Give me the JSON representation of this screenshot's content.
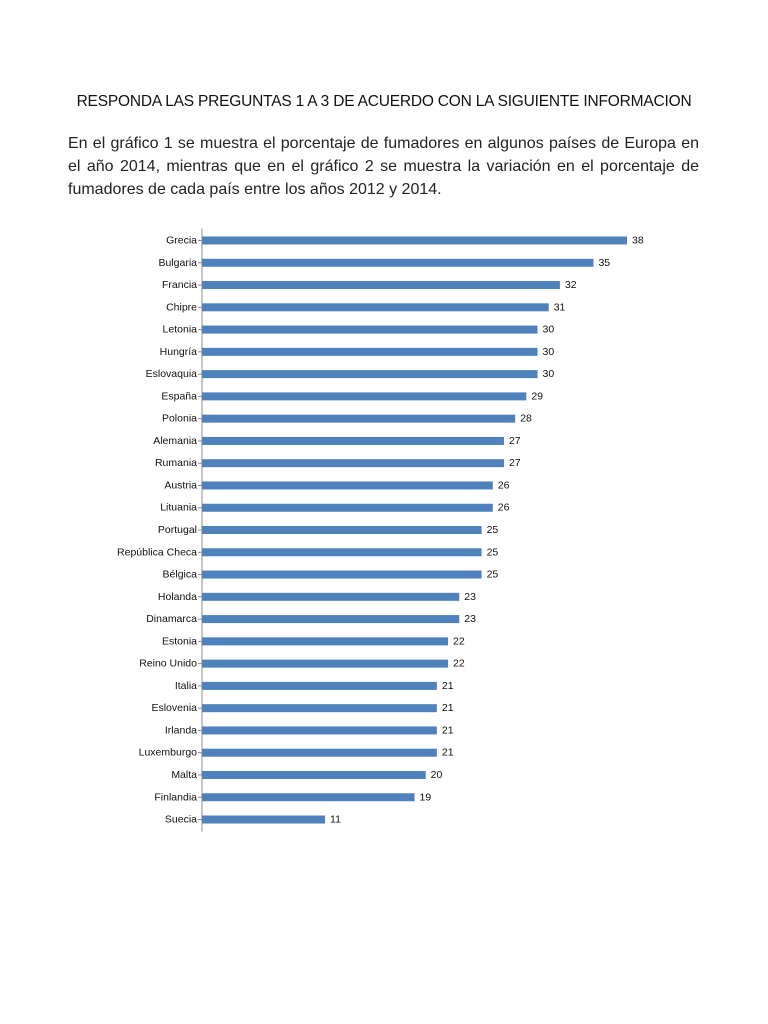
{
  "heading": "RESPONDA LAS PREGUNTAS 1 A 3 DE ACUERDO CON LA SIGUIENTE INFORMACION",
  "intro": "En el gráfico 1 se muestra el porcentaje de fumadores en algunos países de Europa en el año 2014, mientras que en el gráfico 2 se muestra la variación en el porcentaje de fumadores de cada país entre los años 2012 y 2014.",
  "colors": {
    "bar": "#4f81bd",
    "axis": "#8c8c8c"
  },
  "chart_data": {
    "type": "bar",
    "orientation": "horizontal",
    "title": "",
    "xlabel": "",
    "ylabel": "",
    "xlim": [
      0,
      40
    ],
    "grid": false,
    "categories": [
      "Grecia",
      "Bulgaria",
      "Francia",
      "Chipre",
      "Letonia",
      "Hungría",
      "Eslovaquia",
      "España",
      "Polonia",
      "Alemania",
      "Rumania",
      "Austria",
      "Lituania",
      "Portugal",
      "República Checa",
      "Bélgica",
      "Holanda",
      "Dinamarca",
      "Estonia",
      "Reino Unido",
      "Italia",
      "Eslovenia",
      "Irlanda",
      "Luxemburgo",
      "Malta",
      "Finlandia",
      "Suecia"
    ],
    "values": [
      38,
      35,
      32,
      31,
      30,
      30,
      30,
      29,
      28,
      27,
      27,
      26,
      26,
      25,
      25,
      25,
      23,
      23,
      22,
      22,
      21,
      21,
      21,
      21,
      20,
      19,
      11
    ]
  }
}
